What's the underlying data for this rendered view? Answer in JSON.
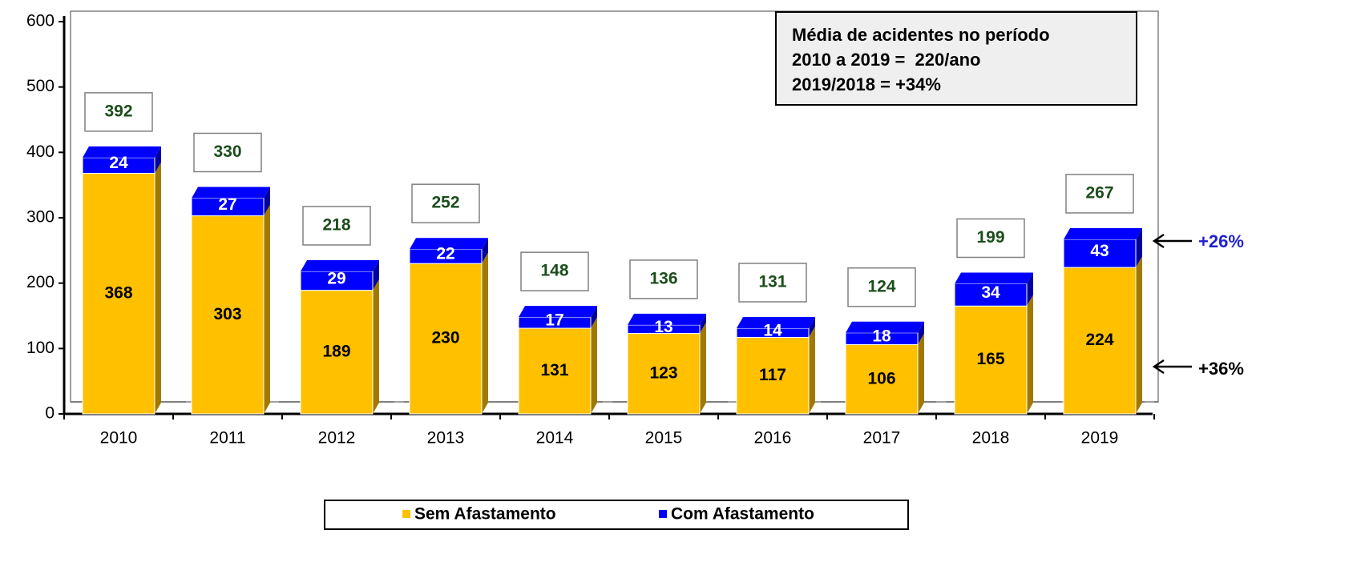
{
  "chart_data": {
    "type": "bar",
    "stacked": true,
    "categories": [
      "2010",
      "2011",
      "2012",
      "2013",
      "2014",
      "2015",
      "2016",
      "2017",
      "2018",
      "2019"
    ],
    "series": [
      {
        "name": "Sem Afastamento",
        "color": "#ffc000",
        "side": "#a07a00",
        "label_color": "#000000",
        "values": [
          368,
          303,
          189,
          230,
          131,
          123,
          117,
          106,
          165,
          224
        ]
      },
      {
        "name": "Com Afastamento",
        "color": "#0000ff",
        "side": "#0000a0",
        "label_color": "#ffffff",
        "values": [
          24,
          27,
          29,
          22,
          17,
          13,
          14,
          18,
          34,
          43
        ]
      }
    ],
    "totals": [
      392,
      330,
      218,
      252,
      148,
      136,
      131,
      124,
      199,
      267
    ],
    "ylim": [
      0,
      600
    ],
    "yticks": [
      0,
      100,
      200,
      300,
      400,
      500,
      600
    ],
    "note": [
      "Média de acidentes no período",
      "2010 a 2019 =  220/ano",
      "2019/2018 = +34%"
    ],
    "annotations": [
      "+26%",
      "+36%"
    ]
  }
}
